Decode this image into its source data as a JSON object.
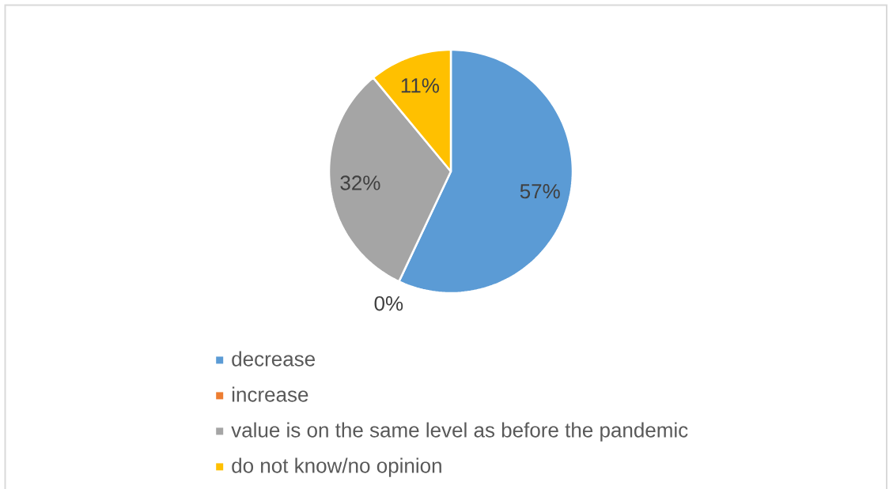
{
  "chart_data": {
    "type": "pie",
    "categories": [
      "decrease",
      "increase",
      "value is on the same level as before the pandemic",
      "do not know/no opinion"
    ],
    "values": [
      57,
      0,
      32,
      11
    ],
    "colors": [
      "#5b9bd5",
      "#ed7d31",
      "#a5a5a5",
      "#ffc000"
    ],
    "value_labels": [
      "57%",
      "0%",
      "32%",
      "11%"
    ],
    "legend": "bottom"
  }
}
